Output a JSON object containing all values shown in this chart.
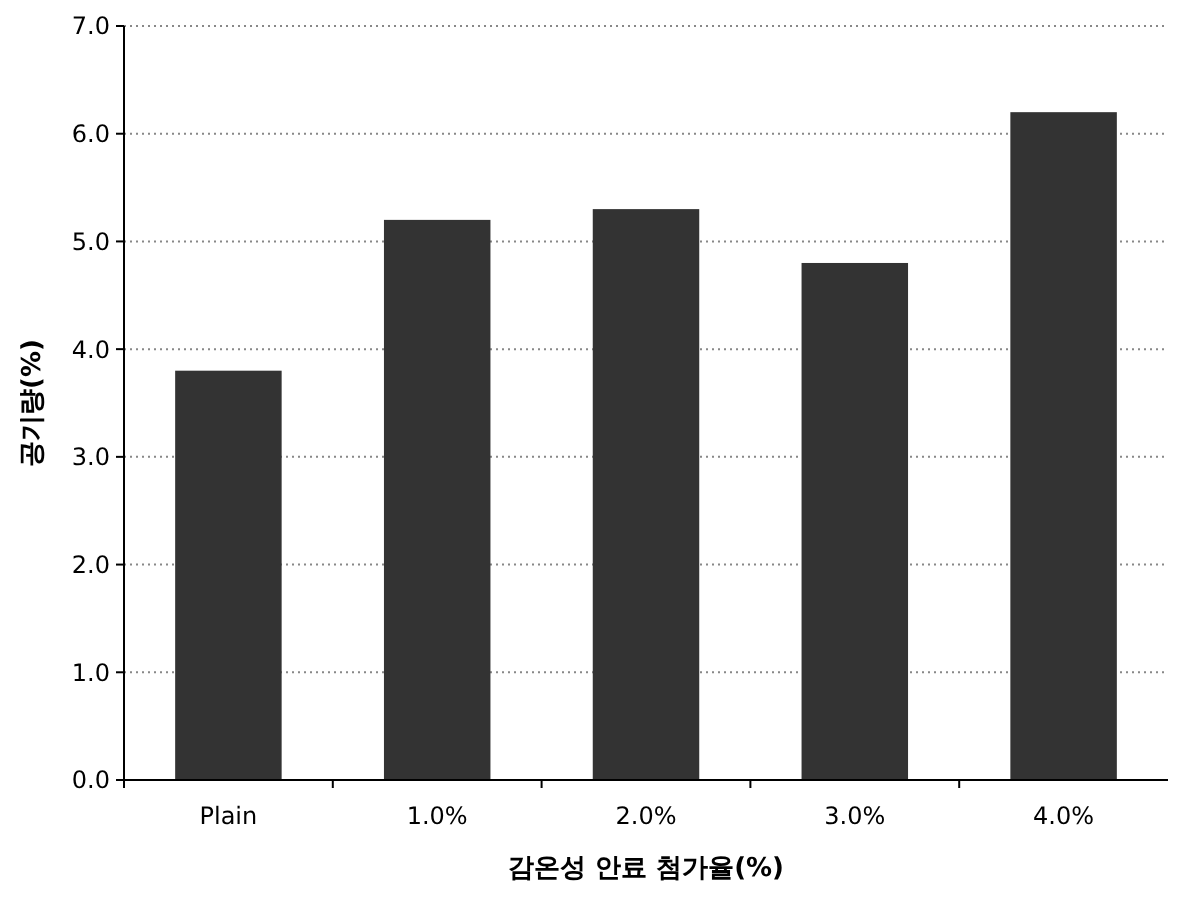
{
  "chart_data": {
    "type": "bar",
    "xlabel": "감온성 안료 첨가율(%)",
    "ylabel": "공기량(%)",
    "categories": [
      "Plain",
      "1.0%",
      "2.0%",
      "3.0%",
      "4.0%"
    ],
    "values": [
      3.8,
      5.2,
      5.3,
      4.8,
      6.2
    ],
    "color": "#333333",
    "ylim": [
      0,
      7
    ],
    "yticks": [
      {
        "value": 0,
        "label": "0.0"
      },
      {
        "value": 1,
        "label": "1.0"
      },
      {
        "value": 2,
        "label": "2.0"
      },
      {
        "value": 3,
        "label": "3.0"
      },
      {
        "value": 4,
        "label": "4.0"
      },
      {
        "value": 5,
        "label": "5.0"
      },
      {
        "value": 6,
        "label": "6.0"
      },
      {
        "value": 7,
        "label": "7.0"
      }
    ],
    "grid": "y"
  }
}
